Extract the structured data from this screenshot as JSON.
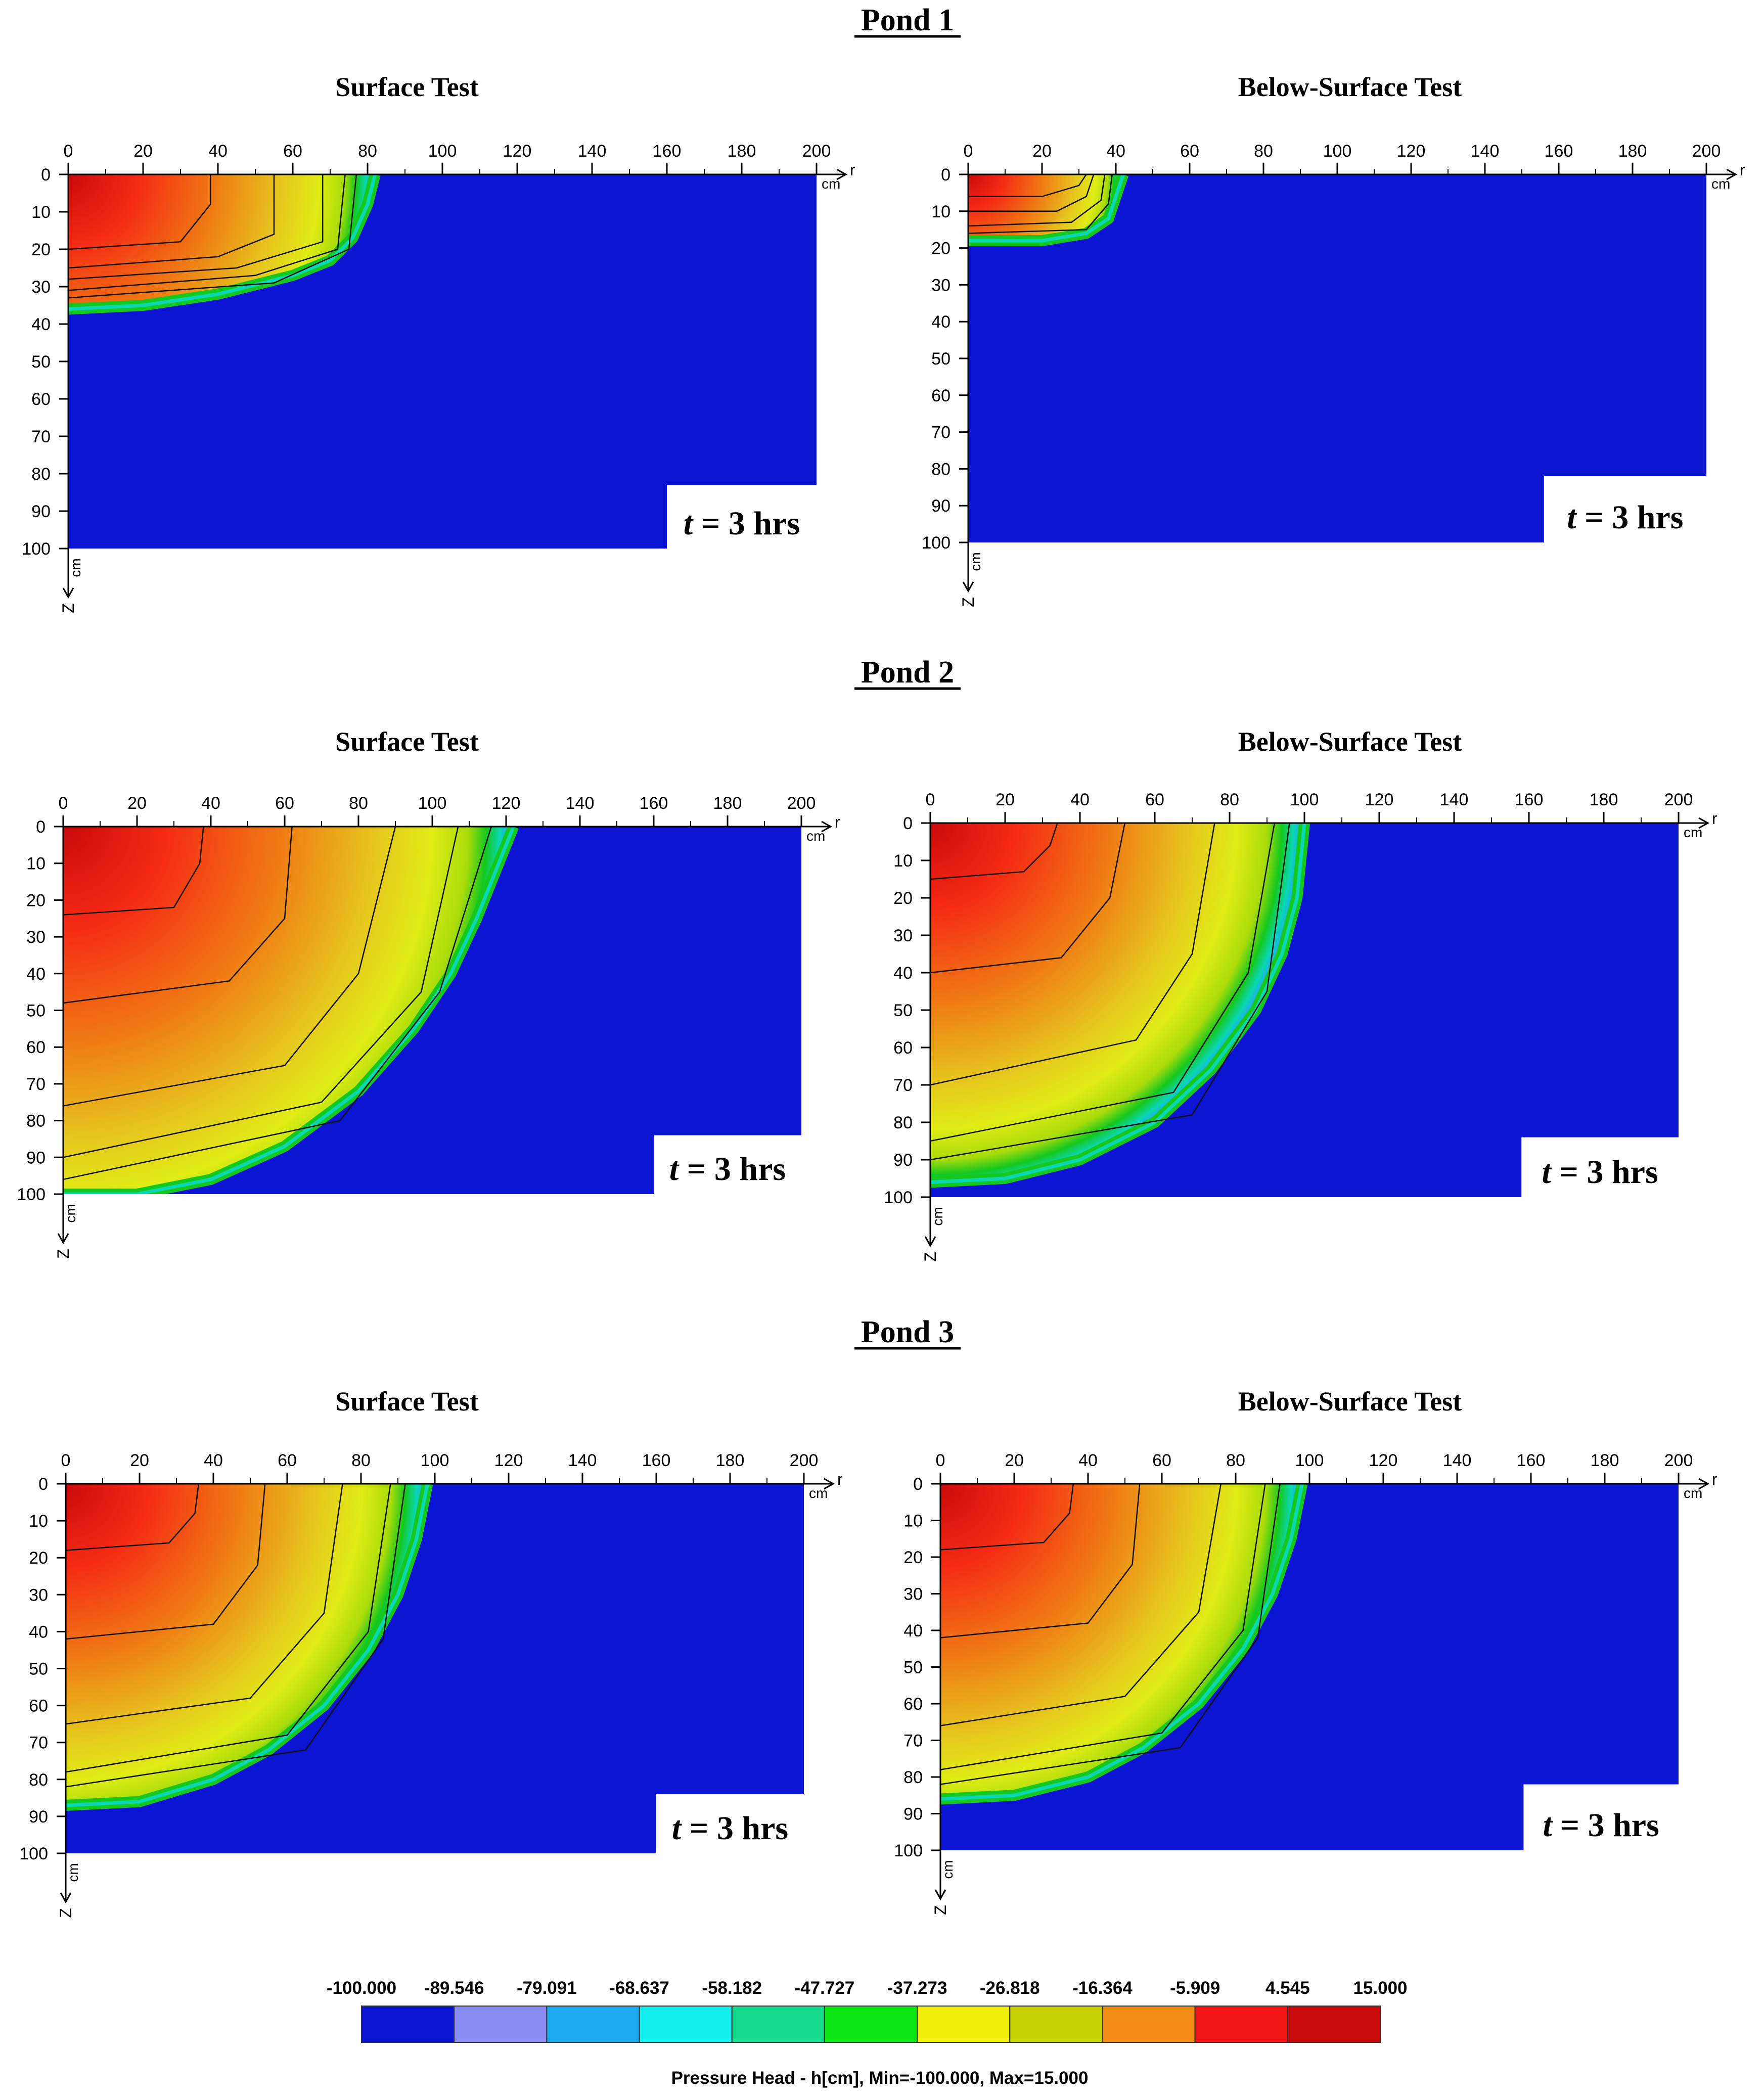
{
  "figure": {
    "ponds": [
      {
        "title": "Pond 1",
        "panels": [
          {
            "subtitle": "Surface Test",
            "time_label": "t = 3 hrs",
            "time_var": "t",
            "time_text": " = 3 hrs",
            "chart_data": {
              "type": "heatmap",
              "wet_front": [
                [
                  0,
                  36
                ],
                [
                  20,
                  35
                ],
                [
                  40,
                  32
                ],
                [
                  60,
                  27
                ],
                [
                  70,
                  23
                ],
                [
                  76,
                  17
                ],
                [
                  80,
                  8
                ],
                [
                  82,
                  0
                ]
              ],
              "contours": [
                [
                  [
                    0,
                    20
                  ],
                  [
                    30,
                    18
                  ],
                  [
                    38,
                    8
                  ],
                  [
                    38,
                    0
                  ]
                ],
                [
                  [
                    0,
                    25
                  ],
                  [
                    40,
                    22
                  ],
                  [
                    55,
                    16
                  ],
                  [
                    55,
                    0
                  ]
                ],
                [
                  [
                    0,
                    28
                  ],
                  [
                    45,
                    25
                  ],
                  [
                    68,
                    18
                  ],
                  [
                    68,
                    0
                  ]
                ],
                [
                  [
                    0,
                    31
                  ],
                  [
                    50,
                    27
                  ],
                  [
                    72,
                    20
                  ],
                  [
                    74,
                    0
                  ]
                ],
                [
                  [
                    0,
                    33
                  ],
                  [
                    55,
                    29
                  ],
                  [
                    75,
                    20
                  ],
                  [
                    77,
                    0
                  ]
                ]
              ],
              "domain": {
                "r_max": 200,
                "z_max": 100,
                "lower_edge_r": 160,
                "step_z": 83
              }
            }
          },
          {
            "subtitle": "Below-Surface Test",
            "time_label": "t = 3 hrs",
            "time_var": "t",
            "time_text": " = 3 hrs",
            "chart_data": {
              "type": "heatmap",
              "wet_front": [
                [
                  0,
                  18
                ],
                [
                  20,
                  18
                ],
                [
                  32,
                  16
                ],
                [
                  38,
                  12
                ],
                [
                  40,
                  6
                ],
                [
                  42,
                  0
                ]
              ],
              "contours": [
                [
                  [
                    0,
                    6
                  ],
                  [
                    20,
                    6
                  ],
                  [
                    30,
                    3
                  ],
                  [
                    32,
                    0
                  ]
                ],
                [
                  [
                    0,
                    10
                  ],
                  [
                    24,
                    10
                  ],
                  [
                    32,
                    6
                  ],
                  [
                    34,
                    0
                  ]
                ],
                [
                  [
                    0,
                    14
                  ],
                  [
                    28,
                    13
                  ],
                  [
                    36,
                    7
                  ],
                  [
                    37,
                    0
                  ]
                ],
                [
                  [
                    0,
                    16
                  ],
                  [
                    32,
                    15
                  ],
                  [
                    38,
                    8
                  ],
                  [
                    39,
                    0
                  ]
                ]
              ],
              "domain": {
                "r_max": 200,
                "z_max": 100,
                "lower_edge_r": 156,
                "step_z": 82
              }
            }
          }
        ]
      },
      {
        "title": "Pond 2",
        "panels": [
          {
            "subtitle": "Surface Test",
            "time_label": "t = 3 hrs",
            "time_var": "t",
            "time_text": " = 3 hrs",
            "chart_data": {
              "type": "heatmap",
              "wet_front": [
                [
                  0,
                  100
                ],
                [
                  20,
                  100
                ],
                [
                  40,
                  96
                ],
                [
                  60,
                  87
                ],
                [
                  80,
                  72
                ],
                [
                  95,
                  55
                ],
                [
                  105,
                  40
                ],
                [
                  112,
                  25
                ],
                [
                  118,
                  10
                ],
                [
                  122,
                  0
                ]
              ],
              "contours": [
                [
                  [
                    0,
                    24
                  ],
                  [
                    30,
                    22
                  ],
                  [
                    37,
                    10
                  ],
                  [
                    38,
                    0
                  ]
                ],
                [
                  [
                    0,
                    48
                  ],
                  [
                    45,
                    42
                  ],
                  [
                    60,
                    25
                  ],
                  [
                    62,
                    0
                  ]
                ],
                [
                  [
                    0,
                    76
                  ],
                  [
                    60,
                    65
                  ],
                  [
                    80,
                    40
                  ],
                  [
                    90,
                    0
                  ]
                ],
                [
                  [
                    0,
                    90
                  ],
                  [
                    70,
                    75
                  ],
                  [
                    97,
                    45
                  ],
                  [
                    107,
                    0
                  ]
                ],
                [
                  [
                    0,
                    96
                  ],
                  [
                    75,
                    80
                  ],
                  [
                    102,
                    45
                  ],
                  [
                    116,
                    0
                  ]
                ]
              ],
              "domain": {
                "r_max": 200,
                "z_max": 100,
                "lower_edge_r": 160,
                "step_z": 84
              }
            }
          },
          {
            "subtitle": "Below-Surface Test",
            "time_label": "t = 3 hrs",
            "time_var": "t",
            "time_text": " = 3 hrs",
            "chart_data": {
              "type": "heatmap",
              "wet_front": [
                [
                  0,
                  96
                ],
                [
                  20,
                  95
                ],
                [
                  40,
                  90
                ],
                [
                  60,
                  80
                ],
                [
                  75,
                  66
                ],
                [
                  87,
                  50
                ],
                [
                  94,
                  35
                ],
                [
                  98,
                  20
                ],
                [
                  100,
                  0
                ]
              ],
              "contours": [
                [
                  [
                    0,
                    15
                  ],
                  [
                    25,
                    13
                  ],
                  [
                    32,
                    6
                  ],
                  [
                    34,
                    0
                  ]
                ],
                [
                  [
                    0,
                    40
                  ],
                  [
                    35,
                    36
                  ],
                  [
                    48,
                    20
                  ],
                  [
                    52,
                    0
                  ]
                ],
                [
                  [
                    0,
                    70
                  ],
                  [
                    55,
                    58
                  ],
                  [
                    70,
                    35
                  ],
                  [
                    76,
                    0
                  ]
                ],
                [
                  [
                    0,
                    85
                  ],
                  [
                    65,
                    72
                  ],
                  [
                    85,
                    40
                  ],
                  [
                    92,
                    0
                  ]
                ],
                [
                  [
                    0,
                    90
                  ],
                  [
                    70,
                    78
                  ],
                  [
                    90,
                    45
                  ],
                  [
                    96,
                    0
                  ]
                ]
              ],
              "domain": {
                "r_max": 200,
                "z_max": 100,
                "lower_edge_r": 158,
                "step_z": 84
              }
            }
          }
        ]
      },
      {
        "title": "Pond 3",
        "panels": [
          {
            "subtitle": "Surface Test",
            "time_label": "t = 3 hrs",
            "time_var": "t",
            "time_text": " = 3 hrs",
            "chart_data": {
              "type": "heatmap",
              "wet_front": [
                [
                  0,
                  87
                ],
                [
                  20,
                  86
                ],
                [
                  40,
                  80
                ],
                [
                  55,
                  72
                ],
                [
                  70,
                  60
                ],
                [
                  82,
                  45
                ],
                [
                  90,
                  30
                ],
                [
                  95,
                  15
                ],
                [
                  98,
                  0
                ]
              ],
              "contours": [
                [
                  [
                    0,
                    18
                  ],
                  [
                    28,
                    16
                  ],
                  [
                    35,
                    8
                  ],
                  [
                    36,
                    0
                  ]
                ],
                [
                  [
                    0,
                    42
                  ],
                  [
                    40,
                    38
                  ],
                  [
                    52,
                    22
                  ],
                  [
                    54,
                    0
                  ]
                ],
                [
                  [
                    0,
                    65
                  ],
                  [
                    50,
                    58
                  ],
                  [
                    70,
                    35
                  ],
                  [
                    75,
                    0
                  ]
                ],
                [
                  [
                    0,
                    78
                  ],
                  [
                    60,
                    68
                  ],
                  [
                    82,
                    40
                  ],
                  [
                    88,
                    0
                  ]
                ],
                [
                  [
                    0,
                    82
                  ],
                  [
                    65,
                    72
                  ],
                  [
                    86,
                    42
                  ],
                  [
                    92,
                    0
                  ]
                ]
              ],
              "domain": {
                "r_max": 200,
                "z_max": 100,
                "lower_edge_r": 160,
                "step_z": 84
              }
            }
          },
          {
            "subtitle": "Below-Surface Test",
            "time_label": "t = 3 hrs",
            "time_var": "t",
            "time_text": " = 3 hrs",
            "chart_data": {
              "type": "heatmap",
              "wet_front": [
                [
                  0,
                  86
                ],
                [
                  20,
                  85
                ],
                [
                  40,
                  80
                ],
                [
                  55,
                  72
                ],
                [
                  70,
                  60
                ],
                [
                  82,
                  45
                ],
                [
                  90,
                  30
                ],
                [
                  95,
                  15
                ],
                [
                  98,
                  0
                ]
              ],
              "contours": [
                [
                  [
                    0,
                    18
                  ],
                  [
                    28,
                    16
                  ],
                  [
                    35,
                    8
                  ],
                  [
                    36,
                    0
                  ]
                ],
                [
                  [
                    0,
                    42
                  ],
                  [
                    40,
                    38
                  ],
                  [
                    52,
                    22
                  ],
                  [
                    54,
                    0
                  ]
                ],
                [
                  [
                    0,
                    66
                  ],
                  [
                    50,
                    58
                  ],
                  [
                    70,
                    35
                  ],
                  [
                    76,
                    0
                  ]
                ],
                [
                  [
                    0,
                    78
                  ],
                  [
                    60,
                    68
                  ],
                  [
                    82,
                    40
                  ],
                  [
                    88,
                    0
                  ]
                ],
                [
                  [
                    0,
                    82
                  ],
                  [
                    65,
                    72
                  ],
                  [
                    86,
                    42
                  ],
                  [
                    92,
                    0
                  ]
                ]
              ],
              "domain": {
                "r_max": 200,
                "z_max": 100,
                "lower_edge_r": 158,
                "step_z": 82
              }
            }
          }
        ]
      }
    ],
    "axes": {
      "x_ticks": [
        "0",
        "20",
        "40",
        "60",
        "80",
        "100",
        "120",
        "140",
        "160",
        "180",
        "200"
      ],
      "y_ticks": [
        "0",
        "10",
        "20",
        "30",
        "40",
        "50",
        "60",
        "70",
        "80",
        "90",
        "100"
      ],
      "x_unit": "cm",
      "x_var": "r",
      "y_unit": "cm",
      "y_var": "Z"
    },
    "legend": {
      "title": "Pressure Head  - h[cm], Min=-100.000, Max=15.000",
      "labels": [
        "-100.000",
        "-89.546",
        "-79.091",
        "-68.637",
        "-58.182",
        "-47.727",
        "-37.273",
        "-26.818",
        "-16.364",
        "-5.909",
        "4.545",
        "15.000"
      ],
      "colors": [
        "#0a14d2",
        "#8c8cf5",
        "#1eaaf0",
        "#14f0f0",
        "#14dc8c",
        "#0ae614",
        "#f0f00a",
        "#c8d200",
        "#f08c14",
        "#f51414",
        "#c80a0a"
      ]
    },
    "colors": {
      "dry_domain": "#0a14d2",
      "ramp": [
        "#c80a0a",
        "#f52814",
        "#f07a14",
        "#e6c81e",
        "#e0ec14",
        "#aadc0a",
        "#14c81e",
        "#0ad7b4",
        "#1eaaf0",
        "#8c8cf5"
      ]
    }
  }
}
